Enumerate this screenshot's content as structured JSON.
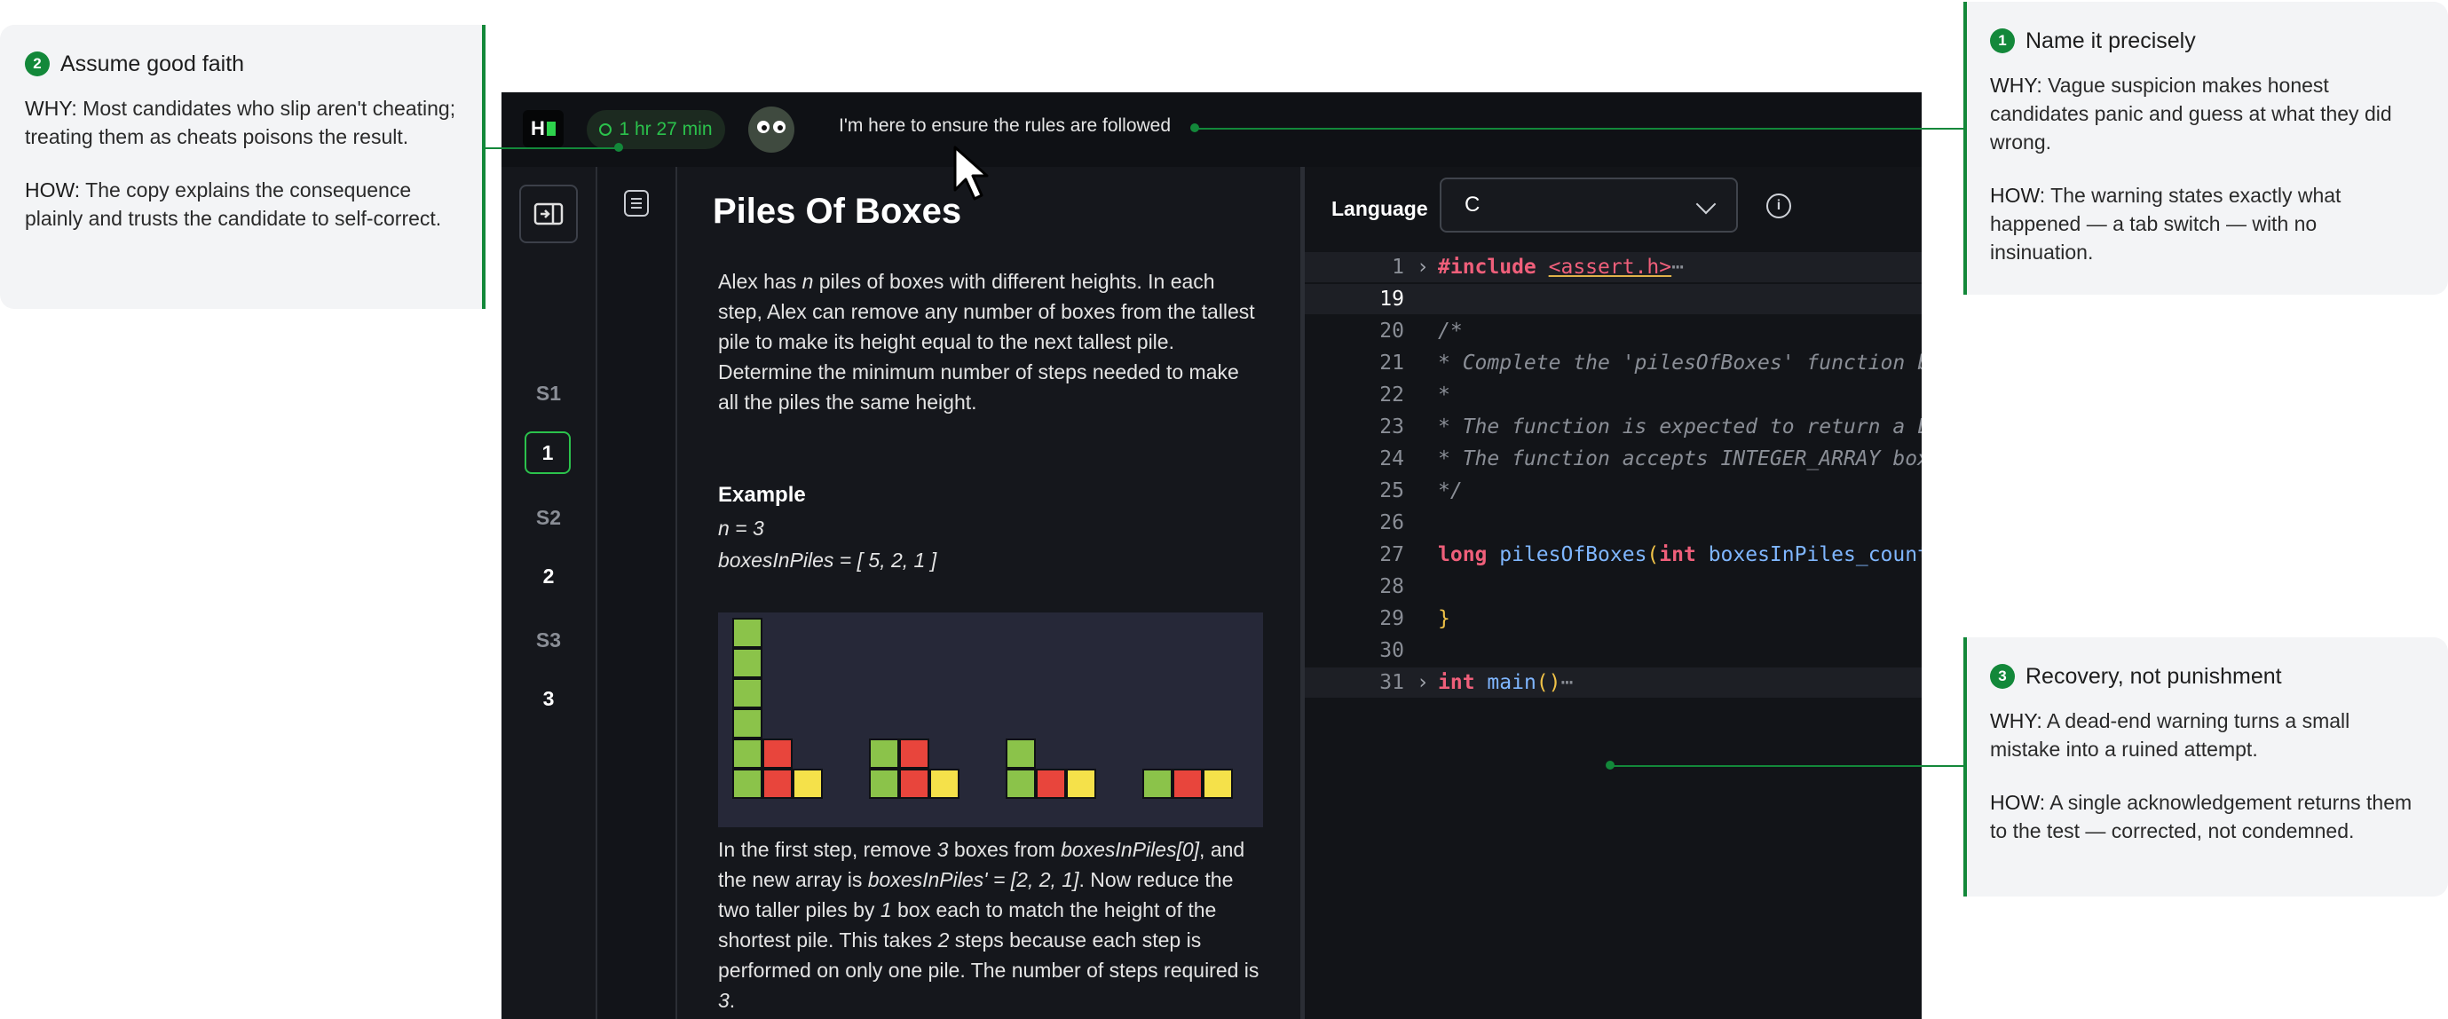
{
  "annotations": {
    "left": {
      "number": "2",
      "title": "Assume good faith",
      "why_label": "WHY:",
      "why_text": " Most candidates who slip aren't cheating; treating them as cheats poisons the result.",
      "how_label": "HOW:",
      "how_text": "  The copy explains the consequence plainly and trusts the candidate to self-correct."
    },
    "right_top": {
      "number": "1",
      "title": "Name it precisely",
      "why_label": "WHY:",
      "why_text": "  Vague suspicion makes honest candidates panic and guess at what they did wrong.",
      "how_label": "HOW:",
      "how_text": " The warning states exactly what happened — a tab switch — with no insinuation."
    },
    "right_bottom": {
      "number": "3",
      "title": "Recovery, not punishment",
      "why_label": "WHY:",
      "why_text": "  A dead-end warning turns a small mistake into a ruined attempt.",
      "how_label": "HOW:",
      "how_text": "  A single acknowledgement returns them to the test — corrected, not condemned."
    }
  },
  "topbar": {
    "logo": "H",
    "timer": "1 hr 27 min",
    "proctor_message": "I'm here to ensure the rules are followed"
  },
  "rail": {
    "sections": [
      "S1",
      "S2",
      "S3"
    ],
    "questions": [
      "1",
      "2",
      "3"
    ],
    "active_question": "1"
  },
  "problem": {
    "title": "Piles Of Boxes",
    "description": "Alex has n piles of boxes with different heights. In each step, Alex can remove any number of boxes from the tallest pile to make its height equal to the next tallest pile. Determine the minimum number of steps needed to make all the piles the same height.",
    "example_heading": "Example",
    "example_n": "n = 3",
    "example_array": "boxesInPiles = [ 5, 2, 1 ]",
    "explanation": "In the first step, remove 3 boxes from boxesInPiles[0], and the new array is boxesInPiles' = [2, 2, 1].  Now reduce the two taller piles by 1 box each to match the height of the shortest pile.  This takes 2 steps because each step is performed on only one pile.  The number of steps required is 3."
  },
  "editor": {
    "language_label": "Language",
    "language_value": "C",
    "lines": [
      {
        "n": "1",
        "text": "#include <assert.h>"
      },
      {
        "n": "19",
        "text": ""
      },
      {
        "n": "20",
        "text": "/*"
      },
      {
        "n": "21",
        "text": " * Complete the 'pilesOfBoxes' function below."
      },
      {
        "n": "22",
        "text": " *"
      },
      {
        "n": "23",
        "text": " * The function is expected to return a LONG_INTEGER."
      },
      {
        "n": "24",
        "text": " * The function accepts INTEGER_ARRAY boxesInPiles as parameter."
      },
      {
        "n": "25",
        "text": " */"
      },
      {
        "n": "26",
        "text": ""
      },
      {
        "n": "27",
        "text": "long pilesOfBoxes(int boxesInPiles_count, int* boxesInPiles) {"
      },
      {
        "n": "28",
        "text": ""
      },
      {
        "n": "29",
        "text": "}"
      },
      {
        "n": "30",
        "text": ""
      },
      {
        "n": "31",
        "text": "int main()"
      }
    ]
  },
  "colors": {
    "accent": "#13883a",
    "box_green": "#8bc34a",
    "box_red": "#e8453c",
    "box_yellow": "#f5e14a"
  }
}
